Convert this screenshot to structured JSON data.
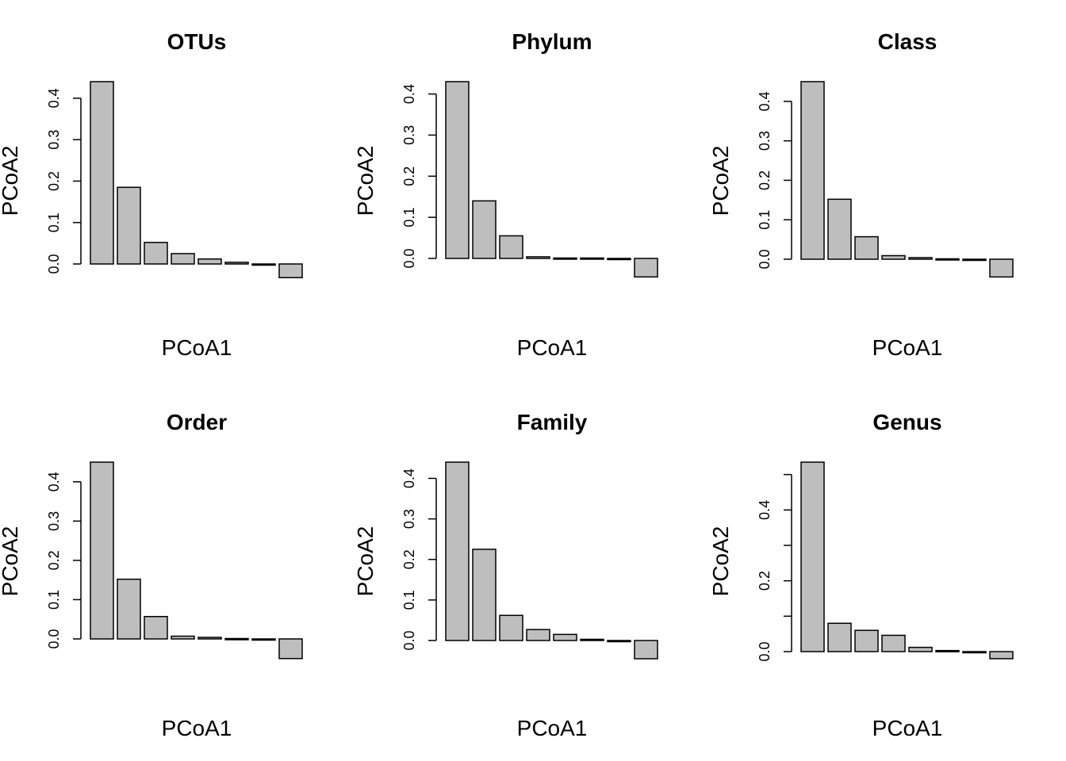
{
  "chart_data": [
    {
      "type": "bar",
      "title": "OTUs",
      "xlabel": "PCoA1",
      "ylabel": "PCoA2",
      "values": [
        0.44,
        0.185,
        0.052,
        0.025,
        0.012,
        0.004,
        0.0,
        -0.033
      ],
      "ylim": [
        0,
        0.44
      ],
      "yticks": [
        "0.0",
        "0.1",
        "0.2",
        "0.3",
        "0.4"
      ],
      "fill": "#bebebe"
    },
    {
      "type": "bar",
      "title": "Phylum",
      "xlabel": "PCoA1",
      "ylabel": "PCoA2",
      "values": [
        0.43,
        0.14,
        0.055,
        0.004,
        0.001,
        0.001,
        -0.002,
        -0.045
      ],
      "ylim": [
        0,
        0.43
      ],
      "yticks": [
        "0.0",
        "0.1",
        "0.2",
        "0.3",
        "0.4"
      ],
      "fill": "#bebebe"
    },
    {
      "type": "bar",
      "title": "Class",
      "xlabel": "PCoA1",
      "ylabel": "PCoA2",
      "values": [
        0.45,
        0.152,
        0.057,
        0.009,
        0.004,
        0.001,
        -0.003,
        -0.045
      ],
      "ylim": [
        0,
        0.45
      ],
      "yticks": [
        "0.0",
        "0.1",
        "0.2",
        "0.3",
        "0.4"
      ],
      "fill": "#bebebe"
    },
    {
      "type": "bar",
      "title": "Order",
      "xlabel": "PCoA1",
      "ylabel": "PCoA2",
      "values": [
        0.45,
        0.152,
        0.057,
        0.007,
        0.004,
        0.001,
        -0.003,
        -0.05
      ],
      "ylim": [
        0,
        0.45
      ],
      "yticks": [
        "0.0",
        "0.1",
        "0.2",
        "0.3",
        "0.4"
      ],
      "fill": "#bebebe"
    },
    {
      "type": "bar",
      "title": "Family",
      "xlabel": "PCoA1",
      "ylabel": "PCoA2",
      "values": [
        0.44,
        0.225,
        0.062,
        0.027,
        0.015,
        0.003,
        0.0,
        -0.045
      ],
      "ylim": [
        0,
        0.44
      ],
      "yticks": [
        "0.0",
        "0.1",
        "0.2",
        "0.3",
        "0.4"
      ],
      "fill": "#bebebe"
    },
    {
      "type": "bar",
      "title": "Genus",
      "xlabel": "PCoA1",
      "ylabel": "PCoA2",
      "values": [
        0.535,
        0.08,
        0.06,
        0.046,
        0.012,
        0.003,
        0.0,
        -0.02
      ],
      "ylim": [
        0,
        0.535
      ],
      "yticks": [
        "0.0",
        "0.2",
        "0.4"
      ],
      "minor_ticks": [
        0.1,
        0.3,
        0.5
      ],
      "fill": "#bebebe"
    }
  ]
}
